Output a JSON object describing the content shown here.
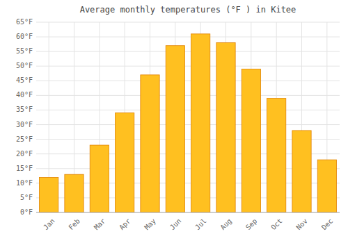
{
  "chart_data": {
    "type": "bar",
    "title": "Average monthly temperatures (°F ) in Kitee",
    "categories": [
      "Jan",
      "Feb",
      "Mar",
      "Apr",
      "May",
      "Jun",
      "Jul",
      "Aug",
      "Sep",
      "Oct",
      "Nov",
      "Dec"
    ],
    "values": [
      12,
      13,
      23,
      34,
      47,
      57,
      61,
      58,
      49,
      39,
      28,
      18
    ],
    "color": "#FFC020",
    "ylim": [
      0,
      65
    ],
    "yticks": [
      {
        "value": 0,
        "label": "0°F"
      },
      {
        "value": 5,
        "label": "5°F"
      },
      {
        "value": 10,
        "label": "10°F"
      },
      {
        "value": 15,
        "label": "15°F"
      },
      {
        "value": 20,
        "label": "20°F"
      },
      {
        "value": 25,
        "label": "25°F"
      },
      {
        "value": 30,
        "label": "30°F"
      },
      {
        "value": 35,
        "label": "35°F"
      },
      {
        "value": 40,
        "label": "40°F"
      },
      {
        "value": 45,
        "label": "45°F"
      },
      {
        "value": 50,
        "label": "50°F"
      },
      {
        "value": 55,
        "label": "55°F"
      },
      {
        "value": 60,
        "label": "60°F"
      },
      {
        "value": 65,
        "label": "65°F"
      }
    ],
    "grid": true
  }
}
